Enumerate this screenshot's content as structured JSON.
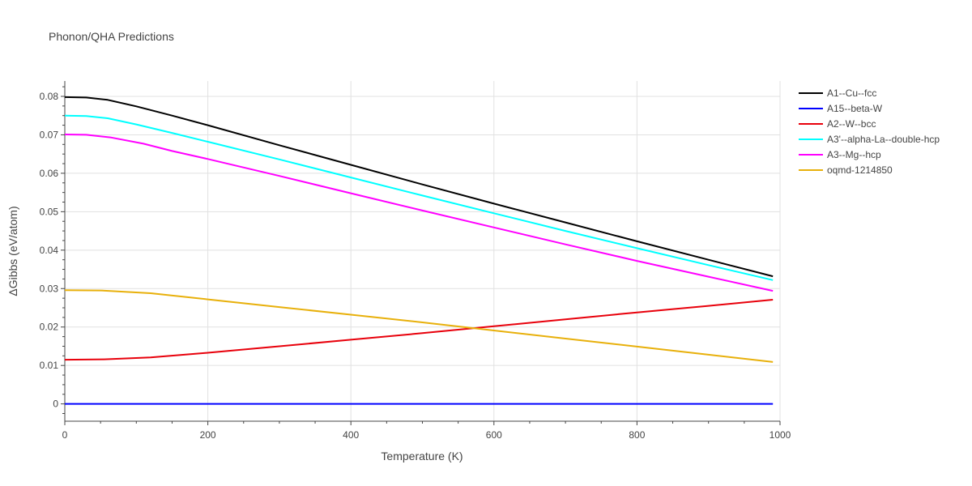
{
  "chart_data": {
    "type": "line",
    "title": "Phonon/QHA Predictions",
    "xlabel": "Temperature (K)",
    "ylabel": "ΔGibbs (eV/atom)",
    "xlim": [
      0,
      1000
    ],
    "ylim": [
      -0.0045,
      0.084
    ],
    "xticks": [
      0,
      200,
      400,
      600,
      800,
      1000
    ],
    "yticks": [
      0,
      0.01,
      0.02,
      0.03,
      0.04,
      0.05,
      0.06,
      0.07,
      0.08
    ],
    "xtick_labels": [
      "0",
      "200",
      "400",
      "600",
      "800",
      "1000"
    ],
    "ytick_labels": [
      "0",
      "0.01",
      "0.02",
      "0.03",
      "0.04",
      "0.05",
      "0.06",
      "0.07",
      "0.08"
    ],
    "grid": true,
    "legend_position": "top-right",
    "series": [
      {
        "name": "A1--Cu--fcc",
        "color": "#000000",
        "x": [
          0,
          30,
          60,
          100,
          150,
          200,
          300,
          400,
          500,
          600,
          700,
          800,
          900,
          990
        ],
        "y": [
          0.0798,
          0.0797,
          0.0791,
          0.0774,
          0.075,
          0.0725,
          0.0673,
          0.0622,
          0.0571,
          0.0521,
          0.0472,
          0.0423,
          0.0375,
          0.0332
        ]
      },
      {
        "name": "A15--beta-W",
        "color": "#0000ff",
        "x": [
          0,
          990
        ],
        "y": [
          0,
          0
        ]
      },
      {
        "name": "A2--W--bcc",
        "color": "#e8000b",
        "x": [
          0,
          55,
          120,
          200,
          300,
          400,
          500,
          600,
          700,
          800,
          900,
          990
        ],
        "y": [
          0.0115,
          0.0116,
          0.0121,
          0.0133,
          0.015,
          0.0167,
          0.0184,
          0.0202,
          0.022,
          0.0238,
          0.0255,
          0.0271
        ]
      },
      {
        "name": "A3'--alpha-La--double-hcp",
        "color": "#00ffff",
        "x": [
          0,
          30,
          60,
          100,
          150,
          200,
          300,
          400,
          500,
          600,
          700,
          800,
          900,
          990
        ],
        "y": [
          0.075,
          0.0749,
          0.0743,
          0.0727,
          0.0705,
          0.0682,
          0.0636,
          0.0589,
          0.0542,
          0.0496,
          0.045,
          0.0405,
          0.0361,
          0.0322
        ]
      },
      {
        "name": "A3--Mg--hcp",
        "color": "#ff00ff",
        "x": [
          0,
          30,
          65,
          110,
          150,
          200,
          300,
          400,
          500,
          600,
          700,
          800,
          900,
          990
        ],
        "y": [
          0.0701,
          0.07,
          0.0693,
          0.0677,
          0.0658,
          0.0637,
          0.0593,
          0.0548,
          0.0503,
          0.0459,
          0.0415,
          0.0372,
          0.0331,
          0.0294
        ]
      },
      {
        "name": "oqmd-1214850",
        "color": "#e8b00b",
        "x": [
          0,
          50,
          120,
          200,
          300,
          400,
          500,
          600,
          700,
          800,
          900,
          990
        ],
        "y": [
          0.0296,
          0.0295,
          0.0288,
          0.0272,
          0.0252,
          0.0232,
          0.0212,
          0.0191,
          0.017,
          0.0149,
          0.0128,
          0.0109
        ]
      }
    ]
  }
}
